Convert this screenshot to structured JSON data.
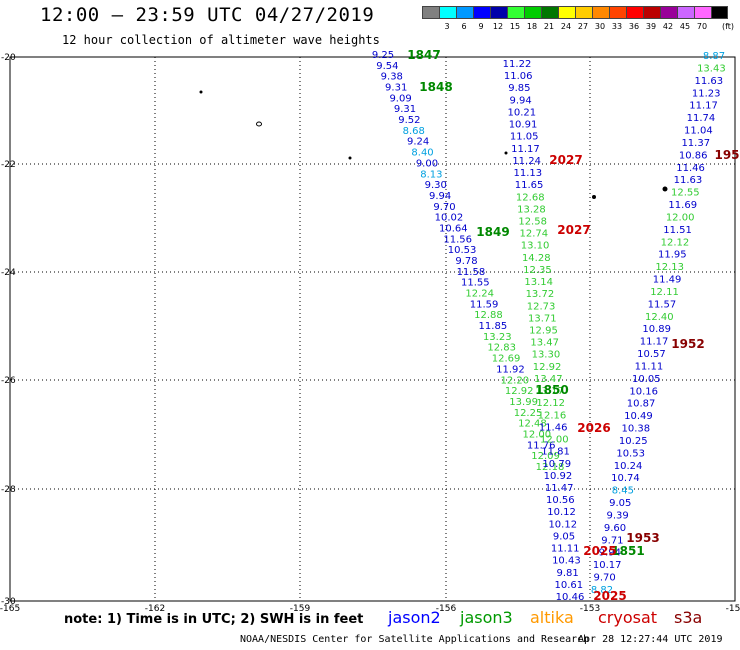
{
  "title": "12:00 – 23:59 UTC 04/27/2019",
  "subtitle": "12 hour collection of altimeter wave heights",
  "colorbar": {
    "unit_label": "(ft)",
    "colors": [
      "#808080",
      "#00ffff",
      "#0099ff",
      "#0000ff",
      "#0000aa",
      "#33ff33",
      "#00cc00",
      "#007700",
      "#ffff00",
      "#ffcc00",
      "#ff8800",
      "#ff4400",
      "#ff0000",
      "#bb0000",
      "#990099",
      "#cc66ff",
      "#ff66ff",
      "#000000"
    ],
    "ticks": [
      "3",
      "6",
      "9",
      "12",
      "15",
      "18",
      "21",
      "24",
      "27",
      "30",
      "33",
      "36",
      "39",
      "42",
      "45",
      "70"
    ]
  },
  "axes": {
    "y_labels": [
      "-20",
      "-22",
      "-24",
      "-26",
      "-28",
      "-30"
    ],
    "x_labels": [
      "-165",
      "-162",
      "-159",
      "-156",
      "-153",
      "-15"
    ]
  },
  "passes": [
    {
      "label": "1847",
      "color": "#008800"
    },
    {
      "label": "1848",
      "color": "#008800"
    },
    {
      "label": "1849",
      "color": "#008800"
    },
    {
      "label": "1850",
      "color": "#008800"
    },
    {
      "label": "1851",
      "color": "#008800"
    },
    {
      "label": "2027",
      "color": "#cc0000"
    },
    {
      "label": "2027",
      "color": "#cc0000"
    },
    {
      "label": "2026",
      "color": "#cc0000"
    },
    {
      "label": "2025",
      "color": "#cc0000"
    },
    {
      "label": "2025",
      "color": "#cc0000"
    },
    {
      "label": "195",
      "color": "#880000"
    },
    {
      "label": "1952",
      "color": "#880000"
    },
    {
      "label": "1953",
      "color": "#880000"
    }
  ],
  "tracks": {
    "track_a": {
      "color_dark": "#0000cc",
      "color_light": "#00a0e0",
      "values": [
        "9.25",
        "9.54",
        "9.38",
        "9.31",
        "9.09",
        "9.31",
        "9.52",
        "8.68",
        "9.24",
        "8.40",
        "9.00",
        "8.13",
        "9.30",
        "9.94",
        "9.70",
        "10.02",
        "10.64",
        "11.56",
        "10.53",
        "9.78",
        "11.58",
        "11.55",
        "12.24",
        "11.59",
        "12.88",
        "11.85",
        "13.23",
        "12.83",
        "12.69",
        "11.92",
        "12.20",
        "12.92",
        "13.99",
        "12.25",
        "12.48",
        "12.00",
        "11.76",
        "12.09",
        "12.18"
      ]
    },
    "track_b": {
      "values": [
        "11.22",
        "11.06",
        "9.85",
        "9.94",
        "10.21",
        "10.91",
        "11.05",
        "11.17",
        "11.24",
        "11.13",
        "11.65",
        "12.68",
        "13.28",
        "12.58",
        "12.74",
        "13.10",
        "14.28",
        "12.35",
        "13.14",
        "13.72",
        "12.73",
        "13.71",
        "12.95",
        "13.47",
        "13.30",
        "12.92",
        "13.47",
        "13.17",
        "12.12",
        "12.16",
        "11.46",
        "12.00",
        "11.81",
        "10.79",
        "10.92",
        "11.47",
        "10.56",
        "10.12",
        "10.12",
        "9.05",
        "11.11",
        "10.43",
        "9.81",
        "10.61",
        "10.46"
      ]
    },
    "track_c": {
      "values": [
        "8.87",
        "13.43",
        "11.63",
        "11.23",
        "11.17",
        "11.74",
        "11.04",
        "11.37",
        "10.86",
        "11.46",
        "11.63",
        "12.55",
        "11.69",
        "12.00",
        "11.51",
        "12.12",
        "11.95",
        "12.13",
        "11.49",
        "12.11",
        "11.57",
        "12.40",
        "10.89",
        "11.17",
        "10.57",
        "11.11",
        "10.05",
        "10.16",
        "10.87",
        "10.49",
        "10.38",
        "10.25",
        "10.53",
        "10.24",
        "10.74",
        "8.45",
        "9.05",
        "9.39",
        "9.60",
        "9.71",
        "9.94",
        "10.17",
        "9.70",
        "8.82"
      ]
    }
  },
  "note": "note:  1) Time is in UTC;  2) SWH is in feet",
  "legend": [
    {
      "label": "jason2",
      "color": "#0000ff"
    },
    {
      "label": "jason3",
      "color": "#009900"
    },
    {
      "label": "altika",
      "color": "#ff9900"
    },
    {
      "label": "cryosat",
      "color": "#cc0000"
    },
    {
      "label": "s3a",
      "color": "#880000"
    }
  ],
  "footer": "NOAA/NESDIS Center for Satellite Applications and Research",
  "timestamp": "Apr 28 12:27:44 UTC 2019"
}
